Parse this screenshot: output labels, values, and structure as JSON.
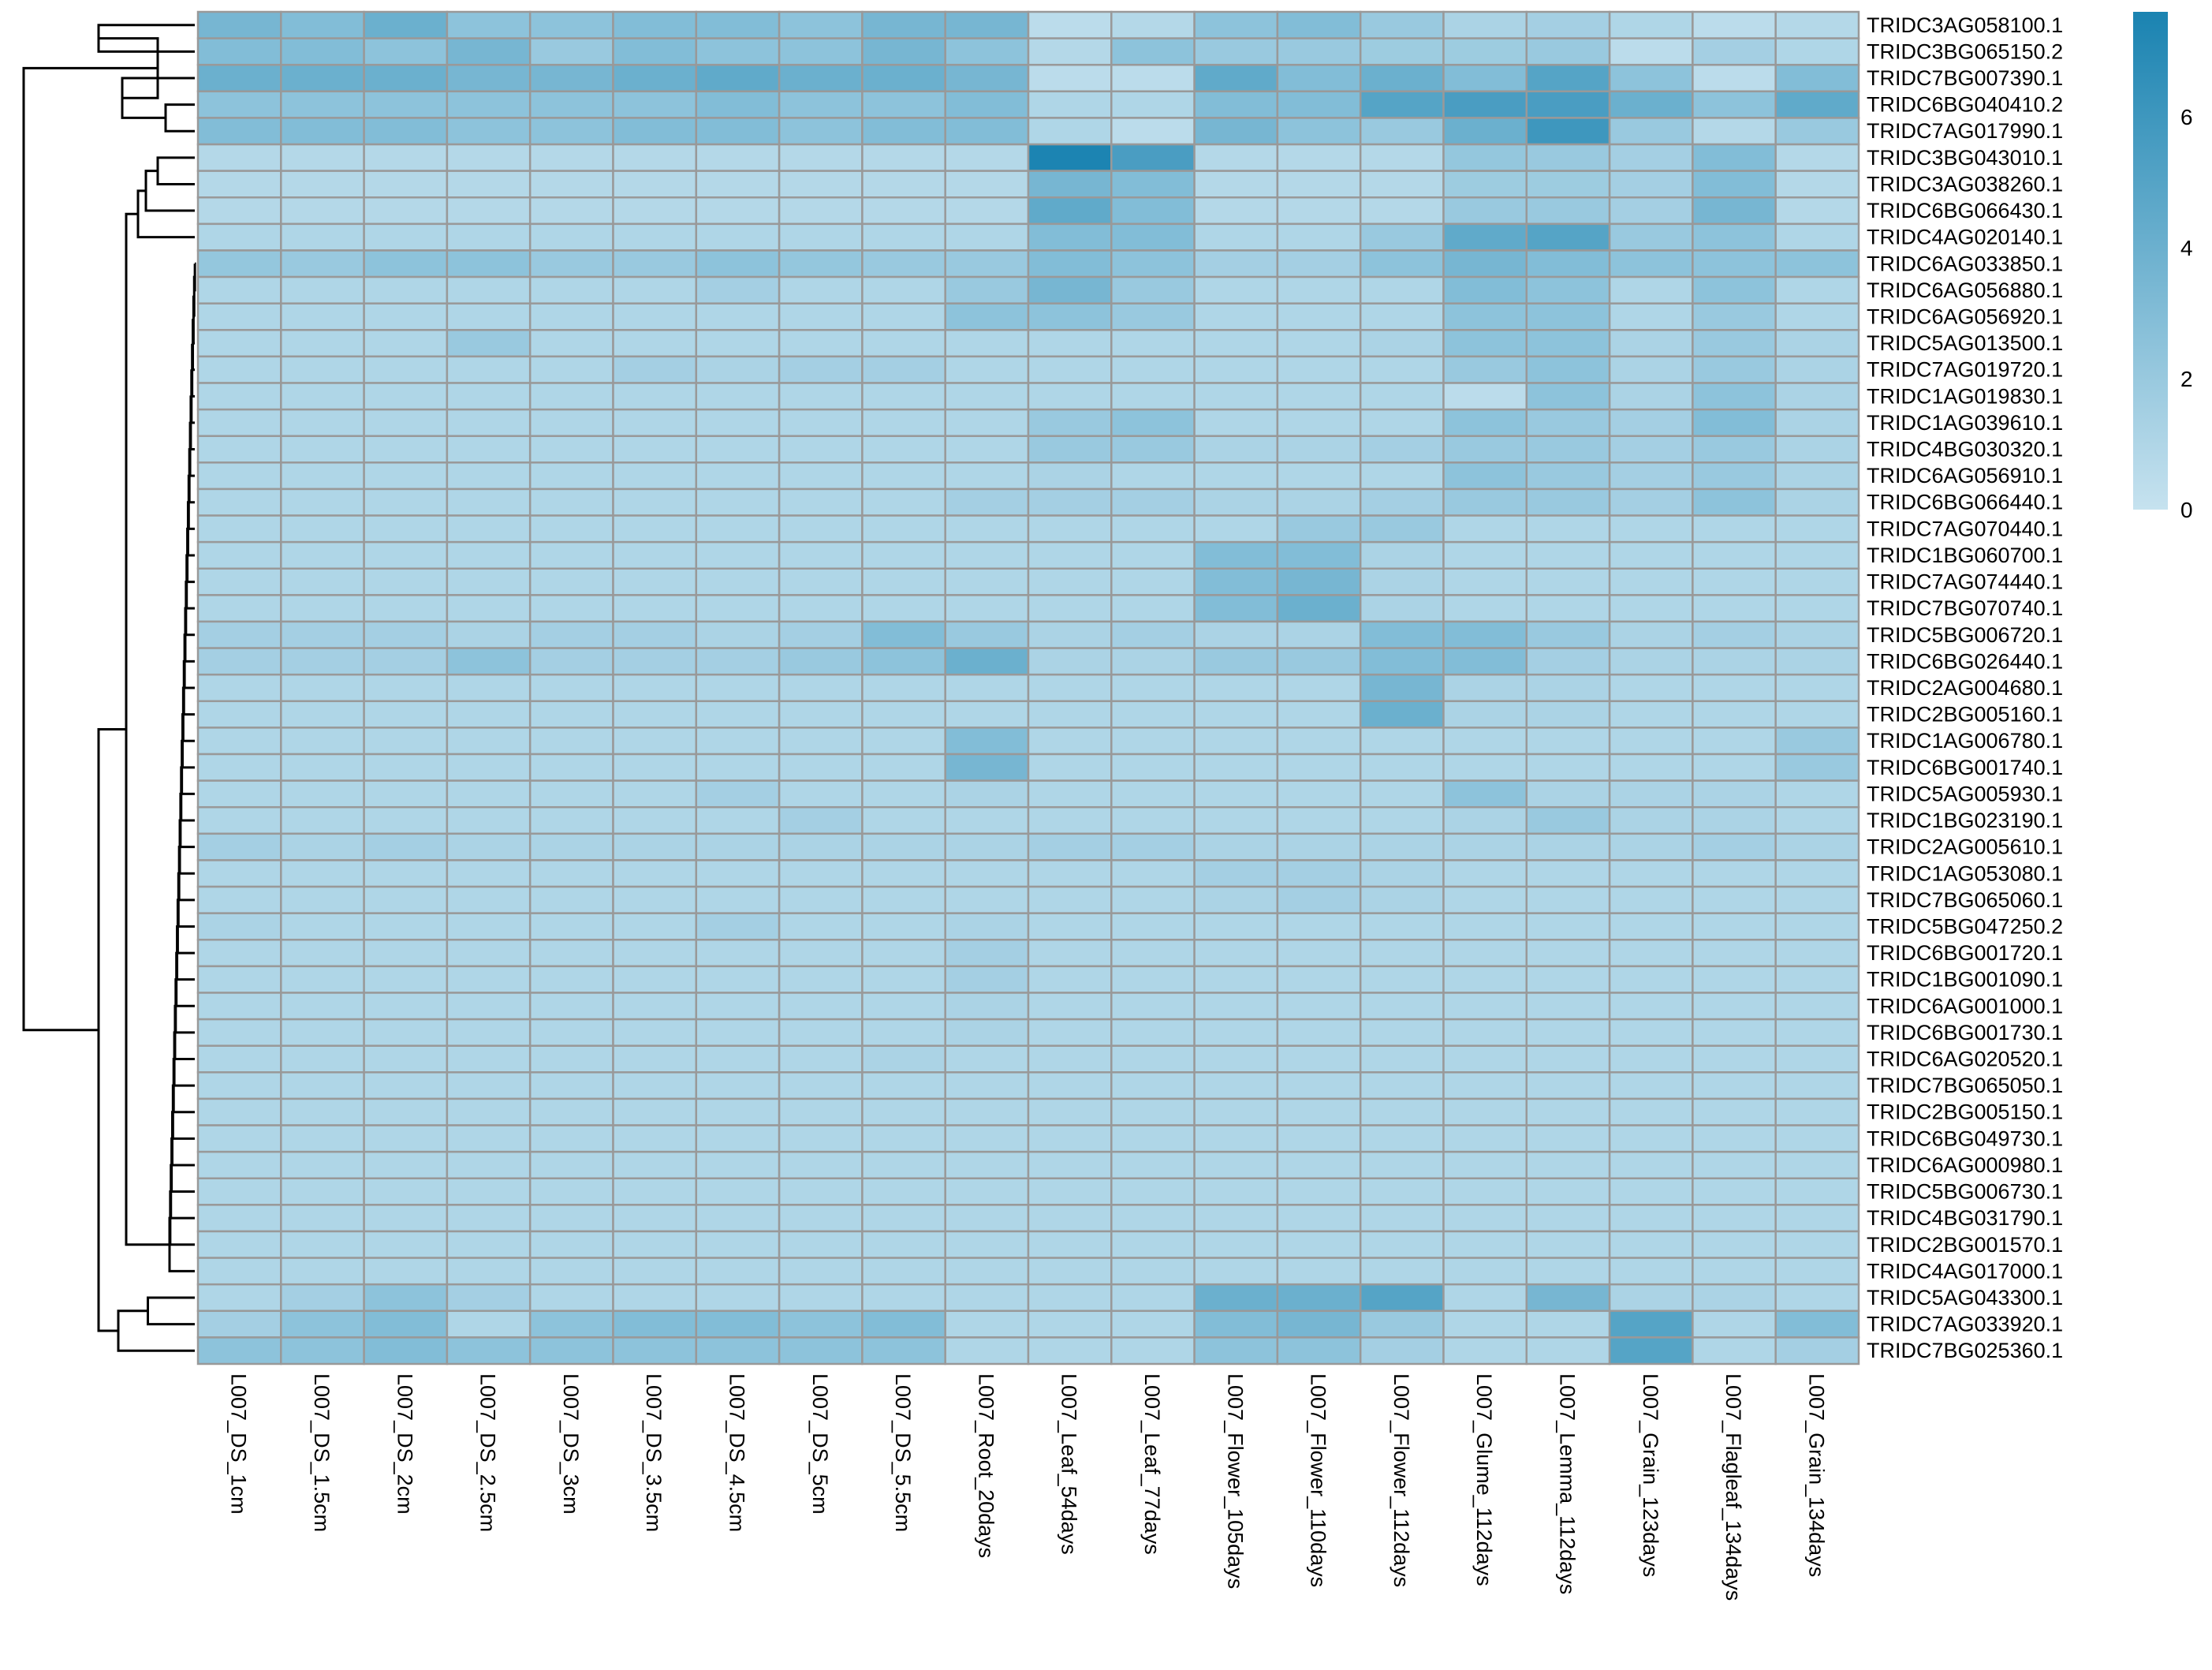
{
  "chart_data": {
    "type": "heatmap",
    "title": "",
    "columns": [
      "L007_DS_1cm",
      "L007_DS_1.5cm",
      "L007_DS_2cm",
      "L007_DS_2.5cm",
      "L007_DS_3cm",
      "L007_DS_3.5cm",
      "L007_DS_4.5cm",
      "L007_DS_5cm",
      "L007_DS_5.5cm",
      "L007_Root_20days",
      "L007_Leaf_54days",
      "L007_Leaf_77days",
      "L007_Flower_105days",
      "L007_Flower_110days",
      "L007_Flower_112days",
      "L007_Glume_112days",
      "L007_Lemma_112days",
      "L007_Grain_123days",
      "L007_Flagleaf_134days",
      "L007_Grain_134days"
    ],
    "rows": [
      "TRIDC3AG058100.1",
      "TRIDC3BG065150.2",
      "TRIDC7BG007390.1",
      "TRIDC6BG040410.2",
      "TRIDC7AG017990.1",
      "TRIDC3BG043010.1",
      "TRIDC3AG038260.1",
      "TRIDC6BG066430.1",
      "TRIDC4AG020140.1",
      "TRIDC6AG033850.1",
      "TRIDC6AG056880.1",
      "TRIDC6AG056920.1",
      "TRIDC5AG013500.1",
      "TRIDC7AG019720.1",
      "TRIDC1AG019830.1",
      "TRIDC1AG039610.1",
      "TRIDC4BG030320.1",
      "TRIDC6AG056910.1",
      "TRIDC6BG066440.1",
      "TRIDC7AG070440.1",
      "TRIDC1BG060700.1",
      "TRIDC7AG074440.1",
      "TRIDC7BG070740.1",
      "TRIDC5BG006720.1",
      "TRIDC6BG026440.1",
      "TRIDC2AG004680.1",
      "TRIDC2BG005160.1",
      "TRIDC1AG006780.1",
      "TRIDC6BG001740.1",
      "TRIDC5AG005930.1",
      "TRIDC1BG023190.1",
      "TRIDC2AG005610.1",
      "TRIDC1AG053080.1",
      "TRIDC7BG065060.1",
      "TRIDC5BG047250.2",
      "TRIDC6BG001720.1",
      "TRIDC1BG001090.1",
      "TRIDC6AG001000.1",
      "TRIDC6BG001730.1",
      "TRIDC6AG020520.1",
      "TRIDC7BG065050.1",
      "TRIDC2BG005150.1",
      "TRIDC6BG049730.1",
      "TRIDC6AG000980.1",
      "TRIDC5BG006730.1",
      "TRIDC4BG031790.1",
      "TRIDC2BG001570.1",
      "TRIDC4AG017000.1",
      "TRIDC5AG043300.1",
      "TRIDC7AG033920.1",
      "TRIDC7BG025360.1"
    ],
    "values": [
      [
        3.5,
        3,
        4,
        2.5,
        2.5,
        3,
        3,
        2.5,
        3.5,
        3.5,
        0.5,
        0.8,
        2.5,
        3,
        2,
        1.2,
        1.5,
        1,
        0.5,
        0.8
      ],
      [
        3,
        3,
        2.5,
        3.5,
        2,
        3,
        2.5,
        2.5,
        3.5,
        2.5,
        0.8,
        2.5,
        2,
        2,
        1.8,
        1.8,
        2,
        0.5,
        1.5,
        1
      ],
      [
        4,
        4,
        4,
        3.5,
        3.5,
        4,
        4.5,
        4,
        4,
        3.5,
        0.5,
        0.5,
        4.5,
        3,
        4,
        3,
        5,
        2.5,
        0.5,
        3
      ],
      [
        2.5,
        2.5,
        2.5,
        2.5,
        2.5,
        2.5,
        3,
        2.5,
        2.5,
        3,
        1,
        1,
        3,
        3,
        5,
        5.5,
        5.5,
        4,
        2.5,
        4.5
      ],
      [
        3,
        3,
        3,
        2.5,
        2.5,
        3,
        3,
        2.5,
        3,
        3,
        1,
        0.5,
        3.5,
        2.5,
        2,
        4,
        6,
        2,
        0.8,
        2
      ],
      [
        0.8,
        0.8,
        0.8,
        0.8,
        0.8,
        0.8,
        0.8,
        0.8,
        0.8,
        0.8,
        7.5,
        5.5,
        0.8,
        0.8,
        0.8,
        2.2,
        2,
        1.5,
        3,
        0.8
      ],
      [
        0.8,
        0.8,
        0.8,
        0.8,
        0.8,
        0.8,
        0.8,
        0.8,
        0.8,
        0.8,
        3.5,
        3,
        0.8,
        0.8,
        0.8,
        1.8,
        1.8,
        1.5,
        3,
        0.8
      ],
      [
        0.8,
        0.8,
        0.8,
        0.8,
        0.8,
        0.8,
        0.8,
        0.8,
        0.8,
        0.8,
        4.5,
        3,
        0.8,
        0.8,
        0.8,
        2,
        2,
        1.5,
        3.5,
        0.8
      ],
      [
        1,
        1,
        1,
        1,
        1,
        1,
        1,
        1,
        1,
        1,
        3,
        3,
        1,
        1,
        2,
        4.5,
        5,
        2,
        2.5,
        1
      ],
      [
        2.2,
        2,
        2.5,
        2.5,
        2,
        2,
        2.5,
        2.2,
        2,
        2,
        3,
        2.5,
        1.5,
        1.5,
        2.5,
        3.5,
        3,
        2.5,
        2.5,
        2.5
      ],
      [
        1,
        1,
        1,
        1,
        1,
        1,
        1.5,
        1,
        1,
        2,
        3.5,
        2,
        1,
        1,
        1,
        3,
        2.5,
        1,
        2.5,
        1
      ],
      [
        1,
        1,
        1,
        1,
        1,
        1,
        1,
        1,
        1,
        2.5,
        2.5,
        2,
        1,
        1,
        1,
        2.5,
        2.5,
        1,
        2,
        1
      ],
      [
        1,
        1,
        1,
        2,
        1,
        1,
        1,
        1,
        1,
        1,
        1,
        1,
        1,
        1,
        1.2,
        2.5,
        2.5,
        1.2,
        2,
        1.2
      ],
      [
        1,
        1,
        1,
        1,
        1,
        1.5,
        1.2,
        1.5,
        1.5,
        1,
        1,
        1,
        1,
        1,
        1,
        2,
        2.5,
        1.2,
        2,
        1.2
      ],
      [
        1,
        1,
        1,
        1,
        1,
        1,
        1,
        1,
        1,
        1,
        1,
        1,
        1,
        1,
        1,
        0.5,
        2.5,
        1.2,
        2.5,
        1.2
      ],
      [
        1,
        1,
        1,
        1,
        1,
        1,
        1,
        1,
        1,
        1,
        2,
        2.5,
        1,
        1,
        1,
        2.5,
        2,
        1.5,
        3,
        1.2
      ],
      [
        1,
        1,
        1,
        1,
        1,
        1,
        1,
        1,
        1,
        1,
        2,
        2,
        1.2,
        1.2,
        1.5,
        2,
        2,
        1.5,
        2,
        1.2
      ],
      [
        1,
        1,
        1,
        1,
        1,
        1,
        1,
        1,
        1,
        1,
        1.2,
        1,
        1,
        1,
        1,
        2.5,
        2,
        1.5,
        2,
        1.2
      ],
      [
        1,
        1,
        1,
        1,
        1,
        1,
        1,
        1,
        1,
        1.5,
        1.5,
        1.5,
        1.2,
        1.2,
        1.5,
        2,
        2,
        1.5,
        2.5,
        1.2
      ],
      [
        1,
        1,
        1,
        1,
        1,
        1,
        1,
        1,
        1,
        1,
        1,
        1,
        1,
        2,
        2,
        1,
        1,
        1,
        1,
        1
      ],
      [
        1,
        1,
        1,
        1,
        1,
        1,
        1,
        1,
        1,
        1,
        1,
        1,
        3,
        3,
        1.2,
        1,
        1,
        1,
        1,
        1
      ],
      [
        1,
        1,
        1,
        1,
        1,
        1,
        1,
        1,
        1,
        1,
        1,
        1,
        3,
        3.5,
        1.2,
        1,
        1,
        1,
        1,
        1
      ],
      [
        1,
        1,
        1,
        1,
        1,
        1,
        1,
        1,
        1,
        1,
        1,
        1,
        3,
        4,
        1.2,
        1,
        1,
        1,
        1,
        1
      ],
      [
        1.5,
        1.5,
        1.5,
        1.2,
        1.5,
        1.5,
        1.2,
        1.5,
        3,
        2,
        1.2,
        1.5,
        1.2,
        1.2,
        3,
        3,
        2,
        1.2,
        1.5,
        1.2
      ],
      [
        1.5,
        1.5,
        1.5,
        2.5,
        1.5,
        1.5,
        1.5,
        2,
        2.5,
        4,
        1.2,
        1.2,
        2,
        2,
        3,
        3,
        1.5,
        1.2,
        1.2,
        1.2
      ],
      [
        1,
        1,
        1,
        1,
        1,
        1,
        1,
        1,
        1,
        1,
        1,
        1,
        1,
        1,
        3.5,
        1.2,
        1.2,
        1,
        1,
        1
      ],
      [
        1,
        1,
        1,
        1,
        1,
        1,
        1,
        1,
        1,
        1,
        1,
        1,
        1,
        1,
        4,
        1.2,
        1.2,
        1,
        1,
        1
      ],
      [
        1,
        1,
        1,
        1,
        1,
        1,
        1,
        1,
        1,
        3,
        1,
        1,
        1,
        1,
        1,
        1,
        1,
        1,
        1,
        2
      ],
      [
        1,
        1,
        1,
        1,
        1,
        1,
        1,
        1,
        1,
        3.5,
        1,
        1,
        1,
        1,
        1,
        1,
        1,
        1,
        1,
        2
      ],
      [
        1,
        1,
        1,
        1,
        1,
        1,
        1.5,
        1,
        1,
        1.2,
        1,
        1,
        1,
        1,
        1,
        2.5,
        1.2,
        1.2,
        1.2,
        1
      ],
      [
        1,
        1,
        1,
        1,
        1,
        1,
        1,
        1.5,
        1,
        1,
        1,
        1,
        1,
        1,
        1,
        1.2,
        2,
        1.2,
        1.2,
        1
      ],
      [
        1.5,
        1.2,
        1.5,
        1.2,
        1.2,
        1.2,
        1.2,
        1.2,
        1.2,
        1.2,
        1.5,
        1.5,
        1.2,
        1.2,
        1.2,
        1.2,
        1.2,
        1.2,
        1.5,
        1.2
      ],
      [
        1,
        1,
        1,
        1,
        1,
        1,
        1,
        1,
        1,
        1,
        1,
        1,
        1.5,
        1.5,
        1.2,
        1,
        1,
        1,
        1,
        1
      ],
      [
        1,
        1,
        1,
        1,
        1,
        1,
        1,
        1,
        1,
        1,
        1,
        1,
        1.2,
        1.5,
        1.2,
        1,
        1,
        1,
        1,
        1
      ],
      [
        1.2,
        1,
        1,
        1,
        1,
        1,
        1.5,
        1,
        1,
        1.2,
        1,
        1,
        1,
        1,
        1,
        1,
        1,
        1,
        1,
        1
      ],
      [
        1,
        1,
        1,
        1,
        1,
        1,
        1,
        1,
        1,
        1.5,
        1,
        1,
        1,
        1,
        1,
        1,
        1,
        1,
        1,
        1
      ],
      [
        1,
        1,
        1,
        1,
        1,
        1,
        1,
        1,
        1,
        1.5,
        1,
        1,
        1,
        1,
        1,
        1,
        1,
        1,
        1,
        1
      ],
      [
        1,
        1,
        1,
        1,
        1,
        1,
        1,
        1,
        1,
        1.2,
        1,
        1,
        1,
        1,
        1,
        1,
        1,
        1,
        1,
        1
      ],
      [
        1,
        1,
        1,
        1,
        1,
        1,
        1,
        1,
        1,
        1.2,
        1,
        1,
        1,
        1,
        1,
        1,
        1,
        1,
        1,
        1
      ],
      [
        1,
        1,
        1,
        1,
        1,
        1,
        1,
        1,
        1.2,
        1,
        1,
        1,
        1,
        1,
        1,
        1,
        1,
        1,
        1,
        1
      ],
      [
        1,
        1,
        1,
        1,
        1,
        1,
        1,
        1,
        1,
        1,
        1,
        1,
        1,
        1,
        1,
        1,
        1,
        1,
        1,
        1
      ],
      [
        1,
        1,
        1,
        1,
        1,
        1,
        1,
        1,
        1,
        1,
        1,
        1,
        1,
        1,
        1,
        1,
        1,
        1,
        1,
        1
      ],
      [
        1,
        1,
        1,
        1,
        1,
        1,
        1,
        1,
        1,
        1,
        1,
        1,
        1,
        1,
        1,
        1,
        1,
        1,
        1,
        1
      ],
      [
        1,
        1,
        1,
        1,
        1,
        1,
        1,
        1,
        1,
        1,
        1,
        1,
        1,
        1,
        1,
        1,
        1,
        1,
        1,
        1
      ],
      [
        1,
        1,
        1,
        1,
        1,
        1,
        1,
        1,
        1,
        1,
        1,
        1,
        1,
        1,
        1,
        1,
        1,
        1,
        1,
        1
      ],
      [
        1,
        1,
        1,
        1,
        1,
        1,
        1,
        1,
        1,
        1,
        1,
        1,
        1,
        1,
        1,
        1,
        1,
        1,
        1,
        1
      ],
      [
        1,
        1,
        1,
        1,
        1,
        1,
        1,
        1,
        1,
        1,
        1,
        1,
        1,
        1,
        1,
        1,
        1,
        1,
        1,
        1
      ],
      [
        1,
        1,
        1,
        1,
        1,
        1,
        1,
        1,
        1,
        1,
        1,
        1,
        1,
        1,
        1,
        1,
        1,
        1,
        1,
        1
      ],
      [
        1,
        1.5,
        2.5,
        1.5,
        1,
        1,
        1,
        1,
        1,
        1,
        1,
        1,
        4,
        4,
        5,
        1,
        3.5,
        1.2,
        1.2,
        1
      ],
      [
        1.5,
        2.5,
        3,
        1,
        2.5,
        3,
        3,
        2.5,
        3,
        1,
        1,
        1,
        3,
        3.5,
        2,
        1,
        1,
        5,
        1,
        3
      ],
      [
        2.5,
        2.5,
        3,
        2.5,
        2.5,
        2.5,
        2.5,
        2.5,
        2.5,
        1,
        1,
        1,
        2.5,
        2.5,
        1.5,
        1,
        1,
        5,
        1,
        1.5
      ]
    ],
    "color_scale": {
      "min": 0,
      "max": 7.6,
      "low": "#c6e2ef",
      "high": "#1a83b1"
    },
    "legend_ticks": [
      0,
      2,
      4,
      6
    ],
    "row_dendrogram": true,
    "legend_placement": "top-right",
    "xlabel": "",
    "ylabel": ""
  }
}
